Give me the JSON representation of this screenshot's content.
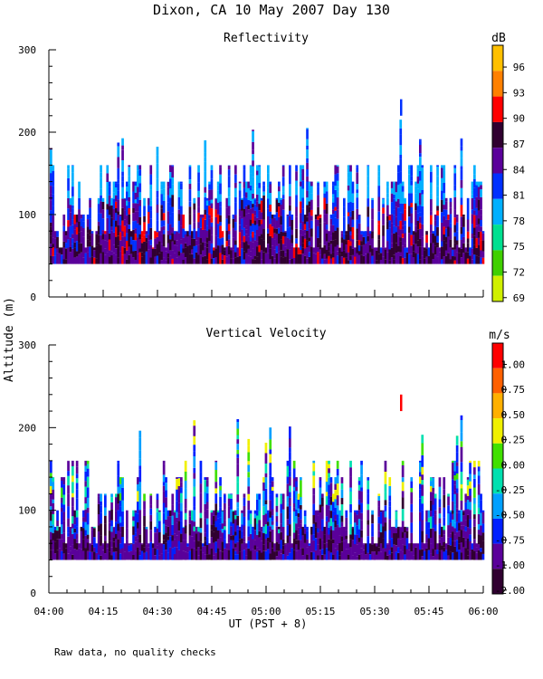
{
  "title": "Dixon, CA 10 May 2007  Day 130",
  "ylabel": "Altitude (m)",
  "xlabel": "UT  (PST + 8)",
  "footer_note": "Raw data, no quality checks",
  "chart_data": [
    {
      "type": "heatmap",
      "title": "Reflectivity",
      "colorbar_unit": "dB",
      "colorbar_ticks": [
        "96",
        "93",
        "90",
        "87",
        "84",
        "81",
        "78",
        "75",
        "72",
        "69"
      ],
      "colorbar_colors": [
        "#ffc000",
        "#ff8000",
        "#ff0000",
        "#300030",
        "#5a009a",
        "#0030ff",
        "#00b0ff",
        "#00e090",
        "#40d000",
        "#d0f000"
      ],
      "ylim": [
        0,
        300
      ],
      "yticks": [
        0,
        100,
        200,
        300
      ],
      "x_range": [
        "04:00",
        "06:00"
      ],
      "echo_profile": {
        "base_m": 40,
        "typical_top_m": [
          120,
          160
        ],
        "max_top_m": 220
      },
      "isolated_echo": {
        "time": "05:37",
        "altitude_m": [
          220,
          240
        ],
        "color": "#0030ff"
      }
    },
    {
      "type": "heatmap",
      "title": "Vertical Velocity",
      "colorbar_unit": "m/s",
      "colorbar_ticks": [
        "1.00",
        "0.75",
        "0.50",
        "0.25",
        "0.00",
        "-0.25",
        "-0.50",
        "-0.75",
        "-1.00",
        "-2.00"
      ],
      "colorbar_colors": [
        "#ff0000",
        "#ff6000",
        "#ffb000",
        "#f0f000",
        "#40e000",
        "#00e0b0",
        "#00a0ff",
        "#0020ff",
        "#5a009a",
        "#300030"
      ],
      "ylim": [
        0,
        300
      ],
      "yticks": [
        0,
        100,
        200,
        300
      ],
      "x_range": [
        "04:00",
        "06:00"
      ],
      "echo_profile": {
        "base_m": 40,
        "typical_top_m": [
          120,
          160
        ],
        "max_top_m": 220
      },
      "isolated_echo": {
        "time": "05:37",
        "altitude_m": [
          220,
          240
        ],
        "color": "#ff0000"
      }
    }
  ],
  "x_ticks": [
    "04:00",
    "04:15",
    "04:30",
    "04:45",
    "05:00",
    "05:15",
    "05:30",
    "05:45",
    "06:00"
  ]
}
